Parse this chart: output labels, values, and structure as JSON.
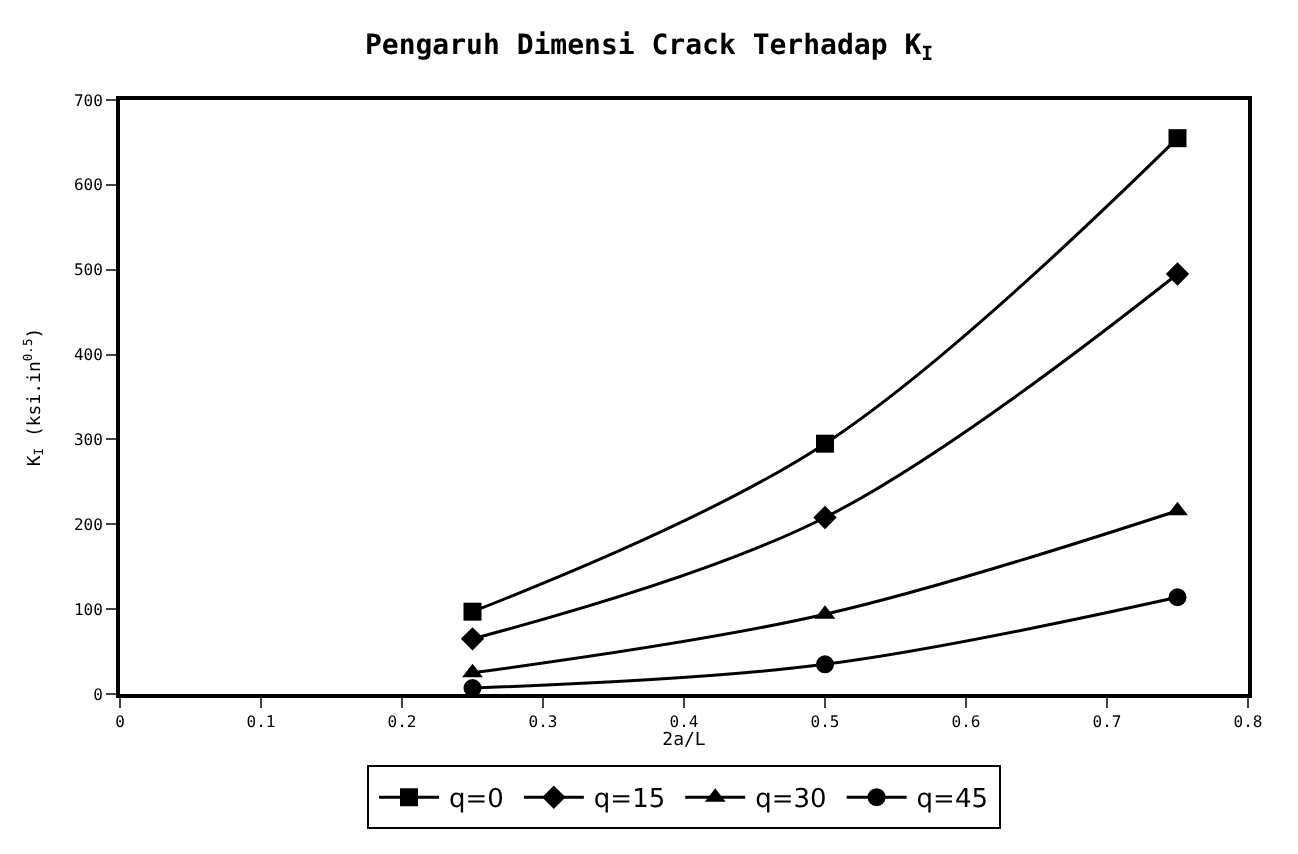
{
  "chart_data": {
    "type": "line",
    "title": "Pengaruh Dimensi Crack Terhadap K$_{I}$",
    "xlabel": "2a/L",
    "ylabel": "K$_{I}$ (ksi.in$^{0.5}$)",
    "x": [
      0.25,
      0.5,
      0.75
    ],
    "series": [
      {
        "name": "q=0",
        "color": "#000000",
        "marker": "square",
        "values": [
          97,
          295,
          655
        ]
      },
      {
        "name": "q=15",
        "color": "#000000",
        "marker": "diamond",
        "values": [
          65,
          208,
          495
        ]
      },
      {
        "name": "q=30",
        "color": "#000000",
        "marker": "triangle",
        "values": [
          25,
          94,
          216
        ]
      },
      {
        "name": "q=45",
        "color": "#000000",
        "marker": "circle",
        "values": [
          7,
          35,
          114
        ]
      }
    ],
    "xlim": [
      0,
      0.8
    ],
    "xticks": [
      0,
      0.1,
      0.2,
      0.3,
      0.4,
      0.5,
      0.6,
      0.7,
      0.8
    ],
    "ylim": [
      0,
      700
    ],
    "yticks": [
      0,
      100,
      200,
      300,
      400,
      500,
      600,
      700
    ],
    "legend": "bottom",
    "line_style": "solid"
  }
}
